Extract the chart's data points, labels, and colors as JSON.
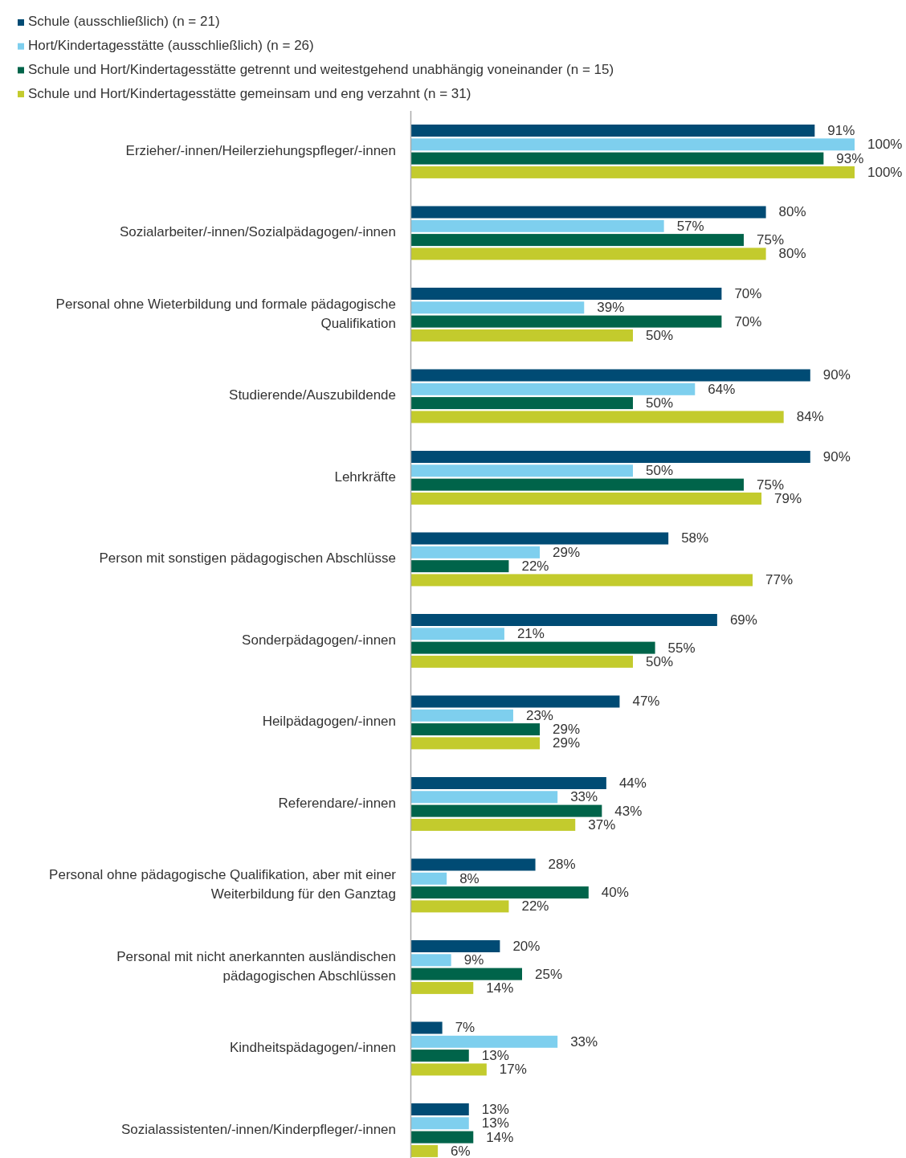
{
  "chart_data": {
    "type": "bar",
    "orientation": "horizontal",
    "legend": "top left",
    "categories": [
      "Erzieher/-innen/Heilerziehungspfleger/-innen",
      "Sozialarbeiter/-innen/Sozialpädagogen/-innen",
      "Personal ohne Wieterbildung und formale pädagogische Qualifikation",
      "Studierende/Auszubildende",
      "Lehrkräfte",
      "Person mit sonstigen pädagogischen Abschlüsse",
      "Sonderpädagogen/-innen",
      "Heilpädagogen/-innen",
      "Referendare/-innen",
      "Personal ohne pädagogische Qualifikation, aber mit einer Weiterbildung für den Ganztag",
      "Personal mit nicht anerkannten ausländischen pädagogischen Abschlüssen",
      "Kindheitspädagogen/-innen",
      "Sozialassistenten/-innen/Kinderpfleger/-innen"
    ],
    "series": [
      {
        "name": "Schule (ausschließlich) (n = 21)",
        "color": "#004b74",
        "values": [
          91,
          80,
          70,
          90,
          90,
          58,
          69,
          47,
          44,
          28,
          20,
          7,
          13
        ],
        "value_labels": [
          "91%",
          "80%",
          "70%",
          "90%",
          "90%",
          "58%",
          "69%",
          "47%",
          "44%",
          "28%",
          "20%",
          "7%",
          "13%"
        ]
      },
      {
        "name": "Hort/Kindertagesstätte (ausschließlich) (n = 26)",
        "color": "#7ecfee",
        "values": [
          100,
          57,
          39,
          64,
          50,
          29,
          21,
          23,
          33,
          8,
          9,
          33,
          13
        ],
        "value_labels": [
          "100%",
          "57%",
          "39%",
          "64%",
          "50%",
          "29%",
          "21%",
          "23%",
          "33%",
          "8%",
          "9%",
          "33%",
          "13%"
        ]
      },
      {
        "name": "Schule und Hort/Kindertagesstätte getrennt und weitestgehend unabhängig voneinander (n = 15)",
        "color": "#00644a",
        "values": [
          93,
          75,
          70,
          50,
          75,
          22,
          55,
          29,
          43,
          40,
          25,
          13,
          14
        ],
        "value_labels": [
          "93%",
          "75%",
          "70%",
          "50%",
          "75%",
          "22%",
          "55%",
          "29%",
          "43%",
          "40%",
          "25%",
          "13%",
          "14%"
        ]
      },
      {
        "name": "Schule und Hort/Kindertagesstätte gemeinsam und eng verzahnt (n = 31)",
        "color": "#c3cb2d",
        "values": [
          100,
          80,
          50,
          84,
          79,
          77,
          50,
          29,
          37,
          22,
          14,
          17,
          6
        ],
        "value_labels": [
          "100%",
          "80%",
          "50%",
          "84%",
          "79%",
          "77%",
          "50%",
          "29%",
          "37%",
          "22%",
          "14%",
          "17%",
          "6%"
        ]
      }
    ]
  }
}
